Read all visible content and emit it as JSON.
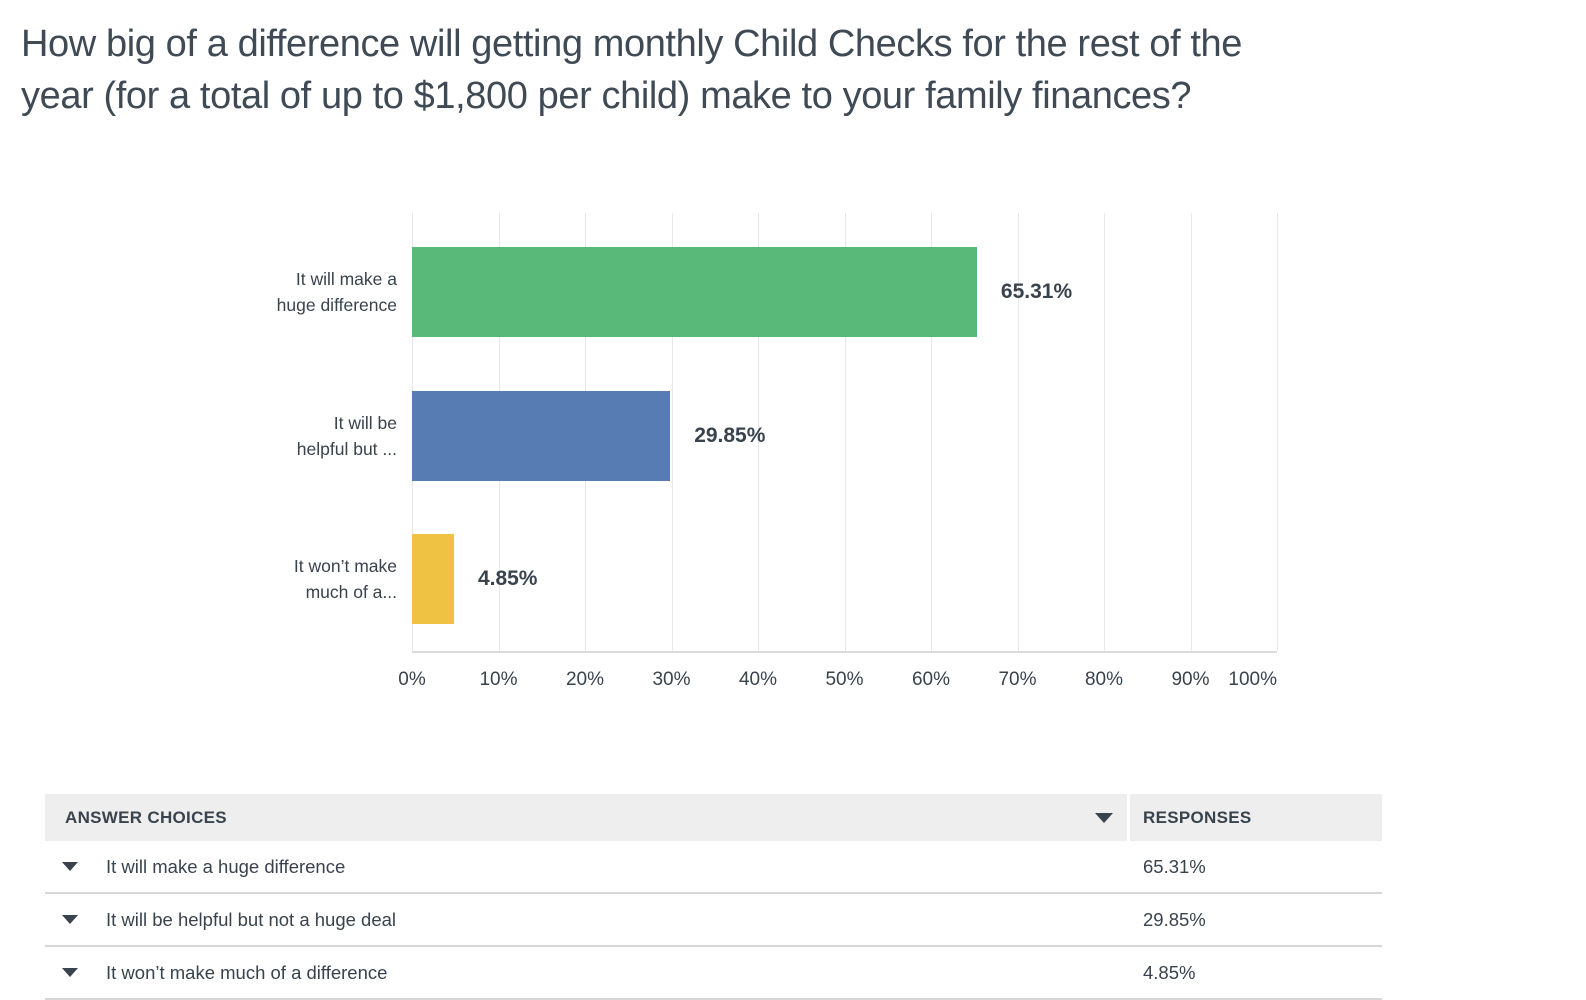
{
  "title": "How big of a difference will getting monthly Child Checks for the rest of the year (for a total of up to $1,800 per child) make to your family finances?",
  "title_lines": [
    "How big of a difference will getting monthly Child Checks for the rest of the",
    "year (for a total of up to $1,800 per child) make to your family finances?"
  ],
  "chart_data": {
    "type": "bar",
    "orientation": "horizontal",
    "title": "",
    "xlabel": "",
    "ylabel": "",
    "categories": [
      "It will make a huge difference",
      "It will be helpful but not a huge deal",
      "It won’t make much of a difference"
    ],
    "axis_category_labels": [
      [
        "It will make a",
        "huge difference"
      ],
      [
        "It will be",
        "helpful but ..."
      ],
      [
        "It won’t make",
        "much of a..."
      ]
    ],
    "values": [
      65.31,
      29.85,
      4.85
    ],
    "value_labels": [
      "65.31%",
      "29.85%",
      "4.85%"
    ],
    "bar_colors": [
      "#58B978",
      "#577CB3",
      "#F0C244"
    ],
    "xlim": [
      0,
      100
    ],
    "x_ticks": [
      "0%",
      "10%",
      "20%",
      "30%",
      "40%",
      "50%",
      "60%",
      "70%",
      "80%",
      "90%",
      "100%"
    ],
    "grid": true,
    "legend": false
  },
  "table": {
    "header": {
      "answer_choices": "ANSWER CHOICES",
      "responses": "RESPONSES",
      "sort_icon": "triangle-down"
    },
    "rows": [
      {
        "expand_icon": "triangle-down",
        "answer": "It will make a huge difference",
        "response": "65.31%"
      },
      {
        "expand_icon": "triangle-down",
        "answer": "It will be helpful but not a huge deal",
        "response": "29.85%"
      },
      {
        "expand_icon": "triangle-down",
        "answer": "It won’t make much of a difference",
        "response": "4.85%"
      }
    ]
  },
  "colors": {
    "bar_green": "#58B978",
    "bar_blue": "#577CB3",
    "bar_yellow": "#F0C244",
    "text": "#39434D",
    "title_text": "#3F4A55",
    "gridline": "#E8E8E8",
    "axis_line": "#DBDBDB",
    "table_header_bg": "#EEEEEE",
    "row_divider": "#D7D7D7"
  }
}
